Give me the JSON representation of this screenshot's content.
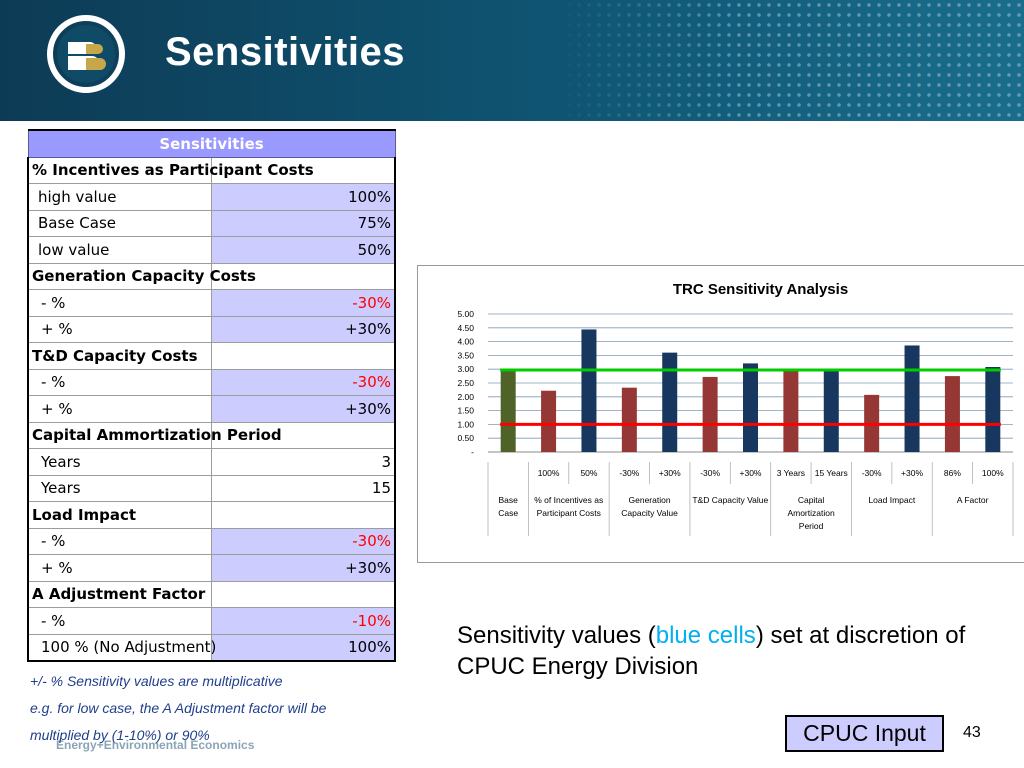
{
  "slide": {
    "title": "Sensitivities",
    "page_number": "43"
  },
  "table": {
    "header": "Sensitivities",
    "rows": [
      {
        "label": "% Incentives as Participant Costs",
        "value": "",
        "type": "section"
      },
      {
        "label": "high value",
        "value": "100%",
        "type": "input",
        "value_color": "black"
      },
      {
        "label": "Base Case",
        "value": "75%",
        "type": "input",
        "value_color": "black"
      },
      {
        "label": "low value",
        "value": "50%",
        "type": "input",
        "value_color": "black"
      },
      {
        "label": "Generation Capacity Costs",
        "value": "",
        "type": "section"
      },
      {
        "label": "- %",
        "value": "-30%",
        "type": "input",
        "value_color": "red"
      },
      {
        "label": "+ %",
        "value": "+30%",
        "type": "input",
        "value_color": "black"
      },
      {
        "label": "T&D Capacity Costs",
        "value": "",
        "type": "section"
      },
      {
        "label": "- %",
        "value": "-30%",
        "type": "input",
        "value_color": "red"
      },
      {
        "label": "+ %",
        "value": "+30%",
        "type": "input",
        "value_color": "black"
      },
      {
        "label": "Capital Ammortization Period",
        "value": "",
        "type": "section"
      },
      {
        "label": "Years",
        "value": "3",
        "type": "plain",
        "value_color": "black"
      },
      {
        "label": "Years",
        "value": "15",
        "type": "plain",
        "value_color": "black"
      },
      {
        "label": "Load Impact",
        "value": "",
        "type": "section"
      },
      {
        "label": "- %",
        "value": "-30%",
        "type": "input",
        "value_color": "red"
      },
      {
        "label": "+ %",
        "value": "+30%",
        "type": "input",
        "value_color": "black"
      },
      {
        "label": "A Adjustment Factor",
        "value": "",
        "type": "section"
      },
      {
        "label": "- %",
        "value": "-10%",
        "type": "input",
        "value_color": "red"
      },
      {
        "label": "100 % (No Adjustment)",
        "value": "100%",
        "type": "input",
        "value_color": "black"
      }
    ]
  },
  "notes": {
    "line1": "+/- % Sensitivity values are multiplicative",
    "line2": "e.g. for low case, the A Adjustment factor will be",
    "line3": "multiplied by (1-10%) or 90%",
    "footer_faint": "Energy+Environmental Economics"
  },
  "caption": {
    "part1": "Sensitivity values (",
    "highlight": "blue cells",
    "part2": ") set at discretion of CPUC Energy Division"
  },
  "cpuc_label": "CPUC Input",
  "colors": {
    "header_band": "#0f5573",
    "table_header": "#9999ff",
    "input_cell": "#ccccff",
    "base_bar": "#4f6228",
    "red_bar": "#953735",
    "navy_bar": "#17375e",
    "green_line": "#00cc00",
    "red_line": "#ff0000",
    "highlight_text": "#00b0f0"
  },
  "chart_data": {
    "type": "bar",
    "title": "TRC Sensitivity Analysis",
    "ylim": [
      0,
      5
    ],
    "yticks": [
      "-",
      "0.50",
      "1.00",
      "1.50",
      "2.00",
      "2.50",
      "3.00",
      "3.50",
      "4.00",
      "4.50",
      "5.00"
    ],
    "grid": true,
    "categories": [
      "",
      "100%",
      "50%",
      "-30%",
      "+30%",
      "-30%",
      "+30%",
      "3 Years",
      "15 Years",
      "-30%",
      "+30%",
      "86%",
      "100%"
    ],
    "values": [
      2.97,
      2.22,
      4.44,
      2.33,
      3.6,
      2.72,
      3.21,
      2.97,
      2.96,
      2.07,
      3.86,
      2.75,
      3.08
    ],
    "bar_colors": [
      "base",
      "red",
      "navy",
      "red",
      "navy",
      "red",
      "navy",
      "red",
      "navy",
      "red",
      "navy",
      "red",
      "navy"
    ],
    "groups": [
      {
        "label": "Base Case",
        "span": 1
      },
      {
        "label": "% of Incentives as Participant Costs",
        "span": 2
      },
      {
        "label": "Generation Capacity Value",
        "span": 2
      },
      {
        "label": "T&D Capacity Value",
        "span": 2
      },
      {
        "label": "Capital Amortization Period",
        "span": 2
      },
      {
        "label": "Load Impact",
        "span": 2
      },
      {
        "label": "A Factor",
        "span": 2
      }
    ],
    "reference_lines": [
      {
        "value": 2.97,
        "color": "green"
      },
      {
        "value": 1.0,
        "color": "red"
      }
    ]
  }
}
